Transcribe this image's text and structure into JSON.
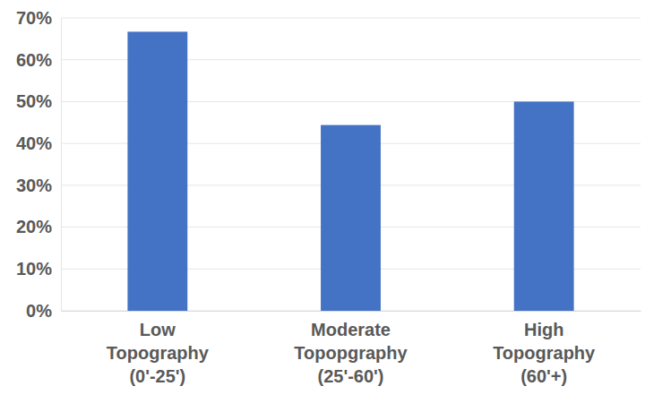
{
  "chart_data": {
    "type": "bar",
    "categories": [
      "Low Topography (0'-25')",
      "Moderate Topopgraphy (25'-60')",
      "High Topography (60'+)"
    ],
    "values": [
      66.7,
      44.4,
      50
    ],
    "color": "#4472c4",
    "ylim": [
      0,
      70
    ],
    "yticks": [
      {
        "value": 0,
        "label": "0%"
      },
      {
        "value": 10,
        "label": "10%"
      },
      {
        "value": 20,
        "label": "20%"
      },
      {
        "value": 30,
        "label": "30%"
      },
      {
        "value": 40,
        "label": "40%"
      },
      {
        "value": 50,
        "label": "50%"
      },
      {
        "value": 60,
        "label": "60%"
      },
      {
        "value": 70,
        "label": "70%"
      }
    ],
    "grid": true
  }
}
